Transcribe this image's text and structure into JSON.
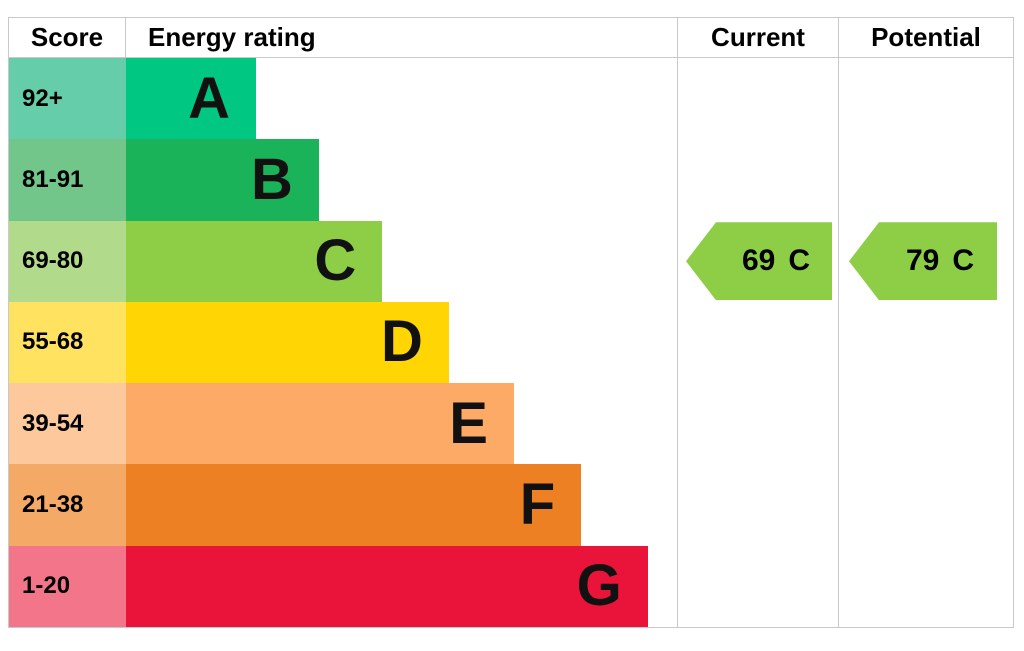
{
  "header": {
    "score": "Score",
    "energy_rating": "Energy rating",
    "current": "Current",
    "potential": "Potential"
  },
  "bands": [
    {
      "score": "92+",
      "letter": "A",
      "color": "#00c781",
      "score_bg": "#66cdaa",
      "width_pct": 23.6
    },
    {
      "score": "81-91",
      "letter": "B",
      "color": "#1ab35a",
      "score_bg": "#72c689",
      "width_pct": 35.0
    },
    {
      "score": "69-80",
      "letter": "C",
      "color": "#8dce46",
      "score_bg": "#b1da8a",
      "width_pct": 46.5
    },
    {
      "score": "55-68",
      "letter": "D",
      "color": "#ffd503",
      "score_bg": "#ffe360",
      "width_pct": 58.6
    },
    {
      "score": "39-54",
      "letter": "E",
      "color": "#fcaa66",
      "score_bg": "#fcc89c",
      "width_pct": 70.4
    },
    {
      "score": "21-38",
      "letter": "F",
      "color": "#ee8024",
      "score_bg": "#f4a967",
      "width_pct": 82.6
    },
    {
      "score": "1-20",
      "letter": "G",
      "color": "#ea143a",
      "score_bg": "#f27589",
      "width_pct": 94.7
    }
  ],
  "current": {
    "value": "69",
    "letter": "C",
    "color": "#8dce46",
    "band_index": 2
  },
  "potential": {
    "value": "79",
    "letter": "C",
    "color": "#8dce46",
    "band_index": 2
  },
  "colors": {
    "border": "#c9c9c9",
    "text": "#000000",
    "background": "#ffffff"
  },
  "chart_data": {
    "type": "bar",
    "title": "Energy rating (EPC)",
    "categories": [
      "A",
      "B",
      "C",
      "D",
      "E",
      "F",
      "G"
    ],
    "score_ranges": [
      "92+",
      "81-91",
      "69-80",
      "55-68",
      "39-54",
      "21-38",
      "1-20"
    ],
    "bar_lengths_pct": [
      23.6,
      35.0,
      46.5,
      58.6,
      70.4,
      82.6,
      94.7
    ],
    "band_colors": [
      "#00c781",
      "#1ab35a",
      "#8dce46",
      "#ffd503",
      "#fcaa66",
      "#ee8024",
      "#ea143a"
    ],
    "column_headers": [
      "Score",
      "Energy rating",
      "Current",
      "Potential"
    ],
    "current": {
      "score": 69,
      "rating": "C"
    },
    "potential": {
      "score": 79,
      "rating": "C"
    },
    "orientation": "horizontal",
    "legend_position": "none",
    "grid": false
  }
}
